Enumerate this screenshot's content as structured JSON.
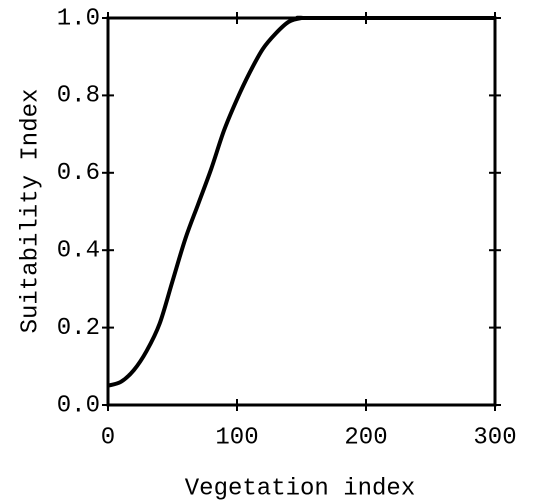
{
  "chart_data": {
    "type": "line",
    "xlabel": "Vegetation index",
    "ylabel": "Suitability Index",
    "x": [
      0,
      10,
      20,
      30,
      40,
      50,
      60,
      70,
      80,
      90,
      100,
      110,
      120,
      130,
      140,
      150,
      160,
      300
    ],
    "series": [
      {
        "color": "#000000",
        "values": [
          0.05,
          0.06,
          0.09,
          0.14,
          0.21,
          0.32,
          0.43,
          0.52,
          0.61,
          0.71,
          0.79,
          0.86,
          0.92,
          0.96,
          0.99,
          1.0,
          1.0,
          1.0
        ]
      }
    ],
    "xlim": [
      0,
      300
    ],
    "xticks": [
      0,
      100,
      200,
      300
    ],
    "ylim": [
      0,
      1
    ],
    "yticks": [
      {
        "value": 0,
        "label": "0.0"
      },
      {
        "value": 0.2,
        "label": "0.2"
      },
      {
        "value": 0.4,
        "label": "0.4"
      },
      {
        "value": 0.6,
        "label": "0.6"
      },
      {
        "value": 0.8,
        "label": "0.8"
      },
      {
        "value": 1,
        "label": "1.0"
      }
    ],
    "grid": false
  }
}
